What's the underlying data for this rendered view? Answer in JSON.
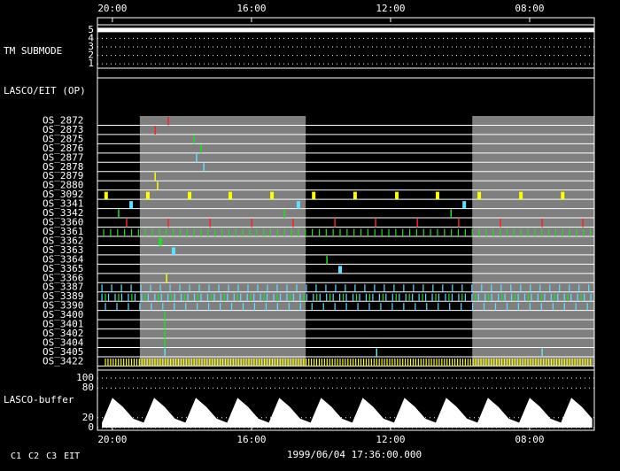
{
  "chart_data": {
    "type": "timeline",
    "xlim": [
      20.43,
      6.14
    ],
    "xticks": [
      {
        "value": 20,
        "label": "20:00"
      },
      {
        "value": 16,
        "label": "16:00"
      },
      {
        "value": 12,
        "label": "12:00"
      },
      {
        "value": 8,
        "label": "08:00"
      }
    ],
    "shaded": [
      [
        19.21,
        14.44
      ],
      [
        9.65,
        6.14
      ]
    ],
    "tm_panel": {
      "label": "TM SUBMODE",
      "ylim": [
        0.6,
        5.4
      ],
      "yticks": [
        5,
        4,
        3,
        2,
        1
      ],
      "x": [
        20.43,
        6.14
      ],
      "values": [
        5,
        5
      ]
    },
    "op_panel": {
      "label": "LASCO/EIT (OP)",
      "rows": [
        {
          "name": "OS_2872",
          "color": "#ff2020",
          "events": [
            18.39
          ]
        },
        {
          "name": "OS_2873",
          "color": "#ff2020",
          "events": [
            18.77
          ]
        },
        {
          "name": "OS_2875",
          "color": "#20e020",
          "events": [
            17.65
          ]
        },
        {
          "name": "OS_2876",
          "color": "#20e020",
          "events": [
            17.45
          ]
        },
        {
          "name": "OS_2877",
          "color": "#60e0ff",
          "events": [
            17.58
          ]
        },
        {
          "name": "OS_2878",
          "color": "#60e0ff",
          "events": [
            17.37
          ]
        },
        {
          "name": "OS_2879",
          "color": "#ffff00",
          "events": [
            18.77
          ]
        },
        {
          "name": "OS_2880",
          "color": "#ffff00",
          "events": [
            18.7
          ]
        },
        {
          "name": "OS_3092",
          "color": "#ffff00",
          "block": true,
          "events": [
            20.18,
            18.98,
            17.78,
            16.61,
            15.41,
            14.21,
            13.02,
            11.82,
            10.65,
            9.45,
            8.25,
            7.05
          ]
        },
        {
          "name": "OS_3341",
          "color": "#60e0ff",
          "block": true,
          "events": [
            19.46,
            14.65,
            9.88
          ]
        },
        {
          "name": "OS_3342",
          "color": "#20e020",
          "events": [
            19.82,
            15.05,
            10.26
          ]
        },
        {
          "name": "OS_3360",
          "color": "#ff2020",
          "events": [
            19.59,
            18.39,
            17.19,
            15.99,
            14.8,
            13.6,
            12.43,
            11.23,
            10.04,
            8.84,
            7.64,
            6.47
          ]
        },
        {
          "name": "OS_3361",
          "color": "#20e020",
          "periodic": [
            {
              "start": 20.25,
              "end": 6.2,
              "step": 0.2,
              "color": "#20e020"
            }
          ]
        },
        {
          "name": "OS_3362",
          "color": "#20e020",
          "block": true,
          "events": [
            18.62
          ]
        },
        {
          "name": "OS_3363",
          "color": "#60e0ff",
          "block": true,
          "events": [
            18.24
          ]
        },
        {
          "name": "OS_3364",
          "color": "#20e020",
          "events": [
            13.83
          ]
        },
        {
          "name": "OS_3365",
          "color": "#60e0ff",
          "block": true,
          "events": [
            13.45
          ]
        },
        {
          "name": "OS_3366",
          "color": "#ffff00",
          "events": [
            18.44
          ]
        },
        {
          "name": "OS_3387",
          "color": "#60e0ff",
          "periodic": [
            {
              "start": 20.3,
              "end": 6.2,
              "step": 0.28,
              "color": "#60e0ff"
            }
          ]
        },
        {
          "name": "OS_3389",
          "color": "#60e0ff",
          "periodic": [
            {
              "start": 20.3,
              "end": 6.2,
              "step": 0.19,
              "color": "#60e0ff"
            },
            {
              "start": 20.2,
              "end": 6.2,
              "step": 0.38,
              "color": "#20e020"
            }
          ]
        },
        {
          "name": "OS_3390",
          "color": "#60e0ff",
          "periodic": [
            {
              "start": 20.2,
              "end": 6.2,
              "step": 0.33,
              "color": "#60e0ff"
            }
          ]
        },
        {
          "name": "OS_3400",
          "color": "#20e020",
          "events": [
            18.49
          ]
        },
        {
          "name": "OS_3401",
          "color": "#20e020",
          "events": [
            18.49
          ]
        },
        {
          "name": "OS_3402",
          "color": "#20e020",
          "events": [
            18.49
          ]
        },
        {
          "name": "OS_3404",
          "color": "#20e020",
          "events": [
            18.49
          ]
        },
        {
          "name": "OS_3405",
          "color": "#60e0ff",
          "events": [
            18.49,
            12.4,
            7.64
          ]
        },
        {
          "name": "OS_3422",
          "color": "#ffff00",
          "periodic": [
            {
              "start": 20.2,
              "end": 6.2,
              "step": 0.075,
              "color": "#ffff00"
            }
          ]
        }
      ]
    },
    "buffer_panel": {
      "label": "LASCO-buffer",
      "ylim": [
        0,
        100
      ],
      "yticks": [
        100,
        80,
        20,
        0
      ],
      "x": [
        20.3,
        20.0,
        19.7,
        19.4,
        19.1,
        18.8,
        18.5,
        18.2,
        17.9,
        17.6,
        17.3,
        17.0,
        16.7,
        16.4,
        16.1,
        15.8,
        15.5,
        15.2,
        14.9,
        14.6,
        14.3,
        14.0,
        13.7,
        13.4,
        13.1,
        12.8,
        12.5,
        12.2,
        11.9,
        11.6,
        11.3,
        11.0,
        10.7,
        10.4,
        10.1,
        9.8,
        9.5,
        9.2,
        8.9,
        8.6,
        8.3,
        8.0,
        7.7,
        7.4,
        7.1,
        6.8,
        6.5,
        6.2
      ],
      "values": [
        10,
        60,
        42,
        18,
        10,
        60,
        42,
        18,
        10,
        60,
        42,
        18,
        10,
        60,
        42,
        18,
        10,
        60,
        42,
        18,
        10,
        60,
        42,
        18,
        10,
        60,
        42,
        18,
        10,
        60,
        42,
        18,
        10,
        60,
        42,
        18,
        10,
        60,
        42,
        18,
        10,
        60,
        42,
        18,
        10,
        60,
        42,
        18
      ]
    },
    "legend": [
      {
        "name": "C1",
        "color": "#ff2020"
      },
      {
        "name": "C2",
        "color": "#20e020"
      },
      {
        "name": "C3",
        "color": "#60e0ff"
      },
      {
        "name": "EIT",
        "color": "#ffffff"
      }
    ],
    "timestamp": "1999/06/04 17:36:00.000"
  }
}
